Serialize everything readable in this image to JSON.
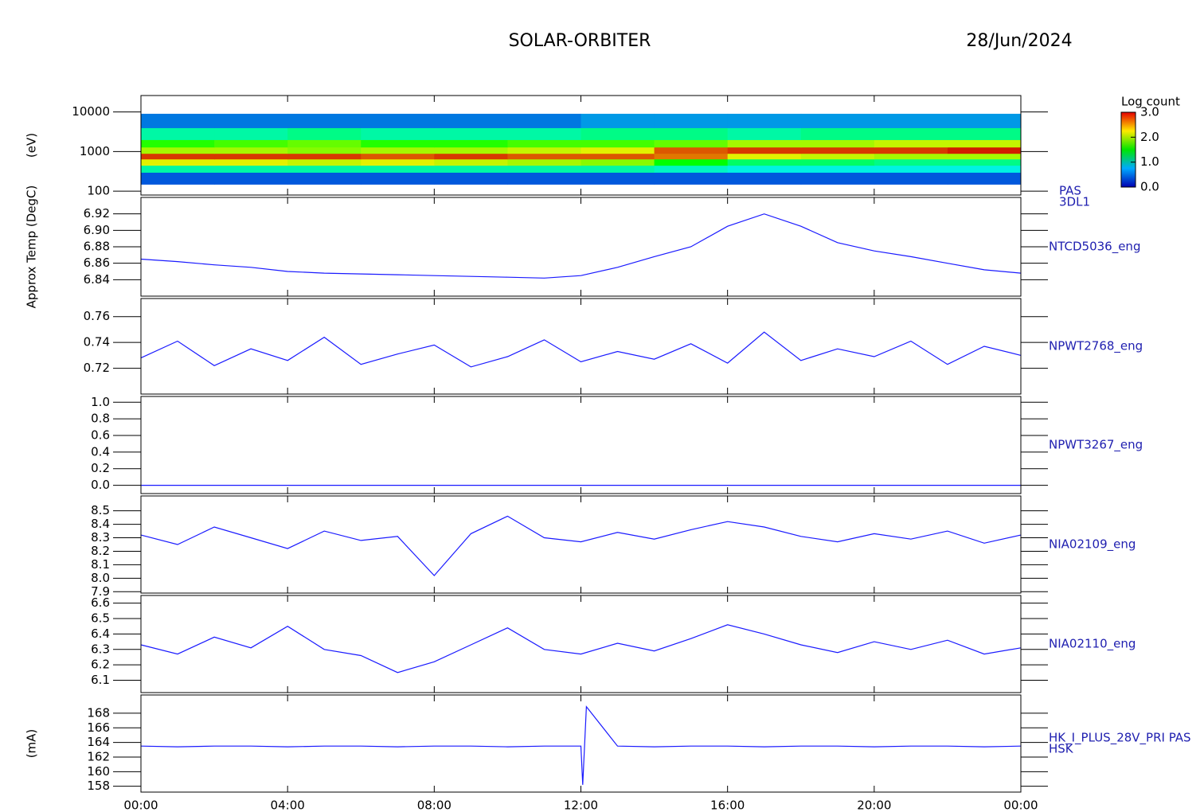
{
  "chart_data": [
    {
      "type": "heatmap",
      "title": "SOLAR-ORBITER",
      "subtitle": "28/Jun/2024",
      "ylabel": "(eV)",
      "side_labels": [
        "PAS",
        "3DL1"
      ],
      "log_y": true,
      "xlim": [
        0,
        24
      ],
      "ylim": [
        80,
        26000
      ],
      "yticks": [
        100,
        1000,
        10000
      ],
      "x_edges": [
        0,
        2,
        4,
        6,
        8,
        10,
        12,
        14,
        16,
        18,
        20,
        22,
        24
      ],
      "y_edges": [
        150,
        300,
        450,
        650,
        900,
        1300,
        2000,
        4000,
        9000
      ],
      "values": [
        [
          0.3,
          0.3,
          0.3,
          0.3,
          0.3,
          0.3,
          0.3,
          0.3,
          0.3,
          0.3,
          0.3,
          0.3
        ],
        [
          1.0,
          1.0,
          1.0,
          1.0,
          1.0,
          1.0,
          1.0,
          0.9,
          0.8,
          0.8,
          0.8,
          0.8
        ],
        [
          2.2,
          2.2,
          2.1,
          2.2,
          2.1,
          2.0,
          1.9,
          1.5,
          1.2,
          1.2,
          1.1,
          1.1
        ],
        [
          2.8,
          2.8,
          2.8,
          2.7,
          2.8,
          2.7,
          2.7,
          2.6,
          2.2,
          2.1,
          2.0,
          2.0
        ],
        [
          2.0,
          2.0,
          1.9,
          2.0,
          2.0,
          2.1,
          2.2,
          2.7,
          2.8,
          2.8,
          2.8,
          2.9
        ],
        [
          1.6,
          1.7,
          1.8,
          1.6,
          1.6,
          1.7,
          1.7,
          1.8,
          2.0,
          2.0,
          2.1,
          2.1
        ],
        [
          1.0,
          1.0,
          1.1,
          1.0,
          1.0,
          1.0,
          1.1,
          1.1,
          1.0,
          1.1,
          1.1,
          1.1
        ],
        [
          0.4,
          0.4,
          0.4,
          0.4,
          0.4,
          0.4,
          0.5,
          0.5,
          0.5,
          0.5,
          0.5,
          0.5
        ]
      ],
      "colorbar": {
        "title": "Log count",
        "lim": [
          0,
          3
        ],
        "ticks": [
          {
            "value": 0,
            "label": "0.0"
          },
          {
            "value": 1,
            "label": "1.0"
          },
          {
            "value": 2,
            "label": "2.0"
          },
          {
            "value": 3,
            "label": "3.0"
          }
        ]
      }
    },
    {
      "type": "line",
      "ylabel": "Approx Temp (DegC)",
      "side_labels": [
        "NTCD5036_eng"
      ],
      "xlim": [
        0,
        24
      ],
      "ylim": [
        6.82,
        6.94
      ],
      "yticks": [
        6.84,
        6.86,
        6.88,
        {
          "value": 6.9,
          "label": "6.90"
        },
        6.92
      ],
      "x": [
        0,
        1,
        2,
        3,
        4,
        5,
        6,
        7,
        8,
        9,
        10,
        11,
        12,
        13,
        14,
        15,
        16,
        17,
        18,
        19,
        20,
        21,
        22,
        23,
        24
      ],
      "series": [
        {
          "color": "#1a1aff",
          "values": [
            6.865,
            6.862,
            6.858,
            6.855,
            6.85,
            6.848,
            6.847,
            6.846,
            6.845,
            6.844,
            6.843,
            6.842,
            6.845,
            6.855,
            6.868,
            6.88,
            6.905,
            6.92,
            6.905,
            6.885,
            6.875,
            6.868,
            6.86,
            6.852,
            6.848
          ]
        }
      ]
    },
    {
      "type": "line",
      "side_labels": [
        "NPWT2768_eng"
      ],
      "xlim": [
        0,
        24
      ],
      "ylim": [
        0.7,
        0.774
      ],
      "yticks": [
        0.72,
        0.74,
        0.76
      ],
      "x": [
        0,
        1,
        2,
        3,
        4,
        5,
        6,
        7,
        8,
        9,
        10,
        11,
        12,
        13,
        14,
        15,
        16,
        17,
        18,
        19,
        20,
        21,
        22,
        23,
        24
      ],
      "series": [
        {
          "color": "#1a1aff",
          "values": [
            0.728,
            0.741,
            0.722,
            0.735,
            0.726,
            0.744,
            0.723,
            0.731,
            0.738,
            0.721,
            0.729,
            0.742,
            0.725,
            0.733,
            0.727,
            0.739,
            0.724,
            0.748,
            0.726,
            0.735,
            0.729,
            0.741,
            0.723,
            0.737,
            0.73
          ]
        }
      ]
    },
    {
      "type": "line",
      "side_labels": [
        "NPWT3267_eng"
      ],
      "xlim": [
        0,
        24
      ],
      "ylim": [
        -0.1,
        1.07
      ],
      "yticks": [
        {
          "value": 0,
          "label": "0.0"
        },
        0.2,
        0.4,
        0.6,
        0.8,
        {
          "value": 1,
          "label": "1.0"
        }
      ],
      "x": [
        0,
        1,
        2,
        3,
        4,
        5,
        6,
        7,
        8,
        9,
        10,
        11,
        12,
        13,
        14,
        15,
        16,
        17,
        18,
        19,
        20,
        21,
        22,
        23,
        24
      ],
      "series": [
        {
          "color": "#1a1aff",
          "values": [
            0,
            0,
            0,
            0,
            0,
            0,
            0,
            0,
            0,
            0,
            0,
            0,
            0,
            0,
            0,
            0,
            0,
            0,
            0,
            0,
            0,
            0,
            0,
            0,
            0
          ]
        }
      ]
    },
    {
      "type": "line",
      "side_labels": [
        "NIA02109_eng"
      ],
      "xlim": [
        0,
        24
      ],
      "ylim": [
        7.89,
        8.61
      ],
      "yticks": [
        7.9,
        {
          "value": 8,
          "label": "8.0"
        },
        8.1,
        8.2,
        8.3,
        8.4,
        8.5
      ],
      "x": [
        0,
        1,
        2,
        3,
        4,
        5,
        6,
        7,
        8,
        9,
        10,
        11,
        12,
        13,
        14,
        15,
        16,
        17,
        18,
        19,
        20,
        21,
        22,
        23,
        24
      ],
      "series": [
        {
          "color": "#1a1aff",
          "values": [
            8.32,
            8.25,
            8.38,
            8.3,
            8.22,
            8.35,
            8.28,
            8.31,
            8.02,
            8.33,
            8.46,
            8.3,
            8.27,
            8.34,
            8.29,
            8.36,
            8.42,
            8.38,
            8.31,
            8.27,
            8.33,
            8.29,
            8.35,
            8.26,
            8.32
          ]
        }
      ]
    },
    {
      "type": "line",
      "side_labels": [
        "NIA02110_eng"
      ],
      "xlim": [
        0,
        24
      ],
      "ylim": [
        6.02,
        6.65
      ],
      "yticks": [
        6.1,
        6.2,
        6.3,
        6.4,
        6.5,
        6.6
      ],
      "x": [
        0,
        1,
        2,
        3,
        4,
        5,
        6,
        7,
        8,
        9,
        10,
        11,
        12,
        13,
        14,
        15,
        16,
        17,
        18,
        19,
        20,
        21,
        22,
        23,
        24
      ],
      "series": [
        {
          "color": "#1a1aff",
          "values": [
            6.33,
            6.27,
            6.38,
            6.31,
            6.45,
            6.3,
            6.26,
            6.15,
            6.22,
            6.33,
            6.44,
            6.3,
            6.27,
            6.34,
            6.29,
            6.37,
            6.46,
            6.4,
            6.33,
            6.28,
            6.35,
            6.3,
            6.36,
            6.27,
            6.31
          ]
        }
      ]
    },
    {
      "type": "line",
      "ylabel": "(mA)",
      "side_labels": [
        "HK_I_PLUS_28V_PRI PAS",
        "HSK"
      ],
      "xlim": [
        0,
        24
      ],
      "ylim": [
        157.2,
        170.5
      ],
      "yticks": [
        158,
        160,
        162,
        164,
        166,
        168
      ],
      "xticks": [
        {
          "value": 0,
          "label": "00:00"
        },
        {
          "value": 4,
          "label": "04:00"
        },
        {
          "value": 8,
          "label": "08:00"
        },
        {
          "value": 12,
          "label": "12:00"
        },
        {
          "value": 16,
          "label": "16:00"
        },
        {
          "value": 20,
          "label": "20:00"
        },
        {
          "value": 24,
          "label": "00:00"
        }
      ],
      "x": [
        0,
        1,
        2,
        3,
        4,
        5,
        6,
        7,
        8,
        9,
        10,
        11,
        12,
        12.05,
        12.15,
        13,
        14,
        15,
        16,
        17,
        18,
        19,
        20,
        21,
        22,
        23,
        24
      ],
      "series": [
        {
          "color": "#1a1aff",
          "values": [
            163.5,
            163.4,
            163.5,
            163.5,
            163.4,
            163.5,
            163.5,
            163.4,
            163.5,
            163.5,
            163.4,
            163.5,
            163.5,
            158.2,
            168.9,
            163.5,
            163.4,
            163.5,
            163.5,
            163.4,
            163.5,
            163.5,
            163.4,
            163.5,
            163.5,
            163.4,
            163.5
          ]
        }
      ]
    }
  ]
}
